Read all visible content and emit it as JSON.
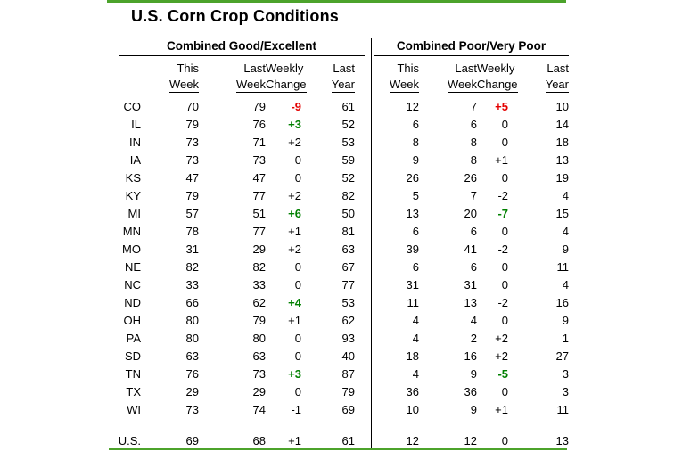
{
  "title": "U.S. Corn Crop Conditions",
  "chart_data": {
    "type": "table",
    "title": "U.S. Corn Crop Conditions",
    "sections": [
      "Combined Good/Excellent",
      "Combined Poor/Very Poor"
    ],
    "column_headers_line1": [
      "This",
      "Last",
      "Weekly",
      "Last"
    ],
    "column_headers_line2": [
      "Week",
      "Week",
      "Change",
      "Year"
    ],
    "colors": {
      "accent_bar": "#4CA32B",
      "worsen": "#E40000",
      "improve": "#008000",
      "text": "#000000"
    },
    "rows": [
      {
        "state": "CO",
        "ge": [
          "70",
          "79",
          "-9",
          "61"
        ],
        "ge_style": "worsen",
        "pv": [
          "12",
          "7",
          "+5",
          "10"
        ],
        "pv_style": "worsen"
      },
      {
        "state": "IL",
        "ge": [
          "79",
          "76",
          "+3",
          "52"
        ],
        "ge_style": "improve",
        "pv": [
          "6",
          "6",
          "0",
          "14"
        ],
        "pv_style": "none"
      },
      {
        "state": "IN",
        "ge": [
          "73",
          "71",
          "+2",
          "53"
        ],
        "ge_style": "none",
        "pv": [
          "8",
          "8",
          "0",
          "18"
        ],
        "pv_style": "none"
      },
      {
        "state": "IA",
        "ge": [
          "73",
          "73",
          "0",
          "59"
        ],
        "ge_style": "none",
        "pv": [
          "9",
          "8",
          "+1",
          "13"
        ],
        "pv_style": "none"
      },
      {
        "state": "KS",
        "ge": [
          "47",
          "47",
          "0",
          "52"
        ],
        "ge_style": "none",
        "pv": [
          "26",
          "26",
          "0",
          "19"
        ],
        "pv_style": "none"
      },
      {
        "state": "KY",
        "ge": [
          "79",
          "77",
          "+2",
          "82"
        ],
        "ge_style": "none",
        "pv": [
          "5",
          "7",
          "-2",
          "4"
        ],
        "pv_style": "none"
      },
      {
        "state": "MI",
        "ge": [
          "57",
          "51",
          "+6",
          "50"
        ],
        "ge_style": "improve",
        "pv": [
          "13",
          "20",
          "-7",
          "15"
        ],
        "pv_style": "improve"
      },
      {
        "state": "MN",
        "ge": [
          "78",
          "77",
          "+1",
          "81"
        ],
        "ge_style": "none",
        "pv": [
          "6",
          "6",
          "0",
          "4"
        ],
        "pv_style": "none"
      },
      {
        "state": "MO",
        "ge": [
          "31",
          "29",
          "+2",
          "63"
        ],
        "ge_style": "none",
        "pv": [
          "39",
          "41",
          "-2",
          "9"
        ],
        "pv_style": "none"
      },
      {
        "state": "NE",
        "ge": [
          "82",
          "82",
          "0",
          "67"
        ],
        "ge_style": "none",
        "pv": [
          "6",
          "6",
          "0",
          "11"
        ],
        "pv_style": "none"
      },
      {
        "state": "NC",
        "ge": [
          "33",
          "33",
          "0",
          "77"
        ],
        "ge_style": "none",
        "pv": [
          "31",
          "31",
          "0",
          "4"
        ],
        "pv_style": "none"
      },
      {
        "state": "ND",
        "ge": [
          "66",
          "62",
          "+4",
          "53"
        ],
        "ge_style": "improve",
        "pv": [
          "11",
          "13",
          "-2",
          "16"
        ],
        "pv_style": "none"
      },
      {
        "state": "OH",
        "ge": [
          "80",
          "79",
          "+1",
          "62"
        ],
        "ge_style": "none",
        "pv": [
          "4",
          "4",
          "0",
          "9"
        ],
        "pv_style": "none"
      },
      {
        "state": "PA",
        "ge": [
          "80",
          "80",
          "0",
          "93"
        ],
        "ge_style": "none",
        "pv": [
          "4",
          "2",
          "+2",
          "1"
        ],
        "pv_style": "none"
      },
      {
        "state": "SD",
        "ge": [
          "63",
          "63",
          "0",
          "40"
        ],
        "ge_style": "none",
        "pv": [
          "18",
          "16",
          "+2",
          "27"
        ],
        "pv_style": "none"
      },
      {
        "state": "TN",
        "ge": [
          "76",
          "73",
          "+3",
          "87"
        ],
        "ge_style": "improve",
        "pv": [
          "4",
          "9",
          "-5",
          "3"
        ],
        "pv_style": "improve"
      },
      {
        "state": "TX",
        "ge": [
          "29",
          "29",
          "0",
          "79"
        ],
        "ge_style": "none",
        "pv": [
          "36",
          "36",
          "0",
          "3"
        ],
        "pv_style": "none"
      },
      {
        "state": "WI",
        "ge": [
          "73",
          "74",
          "-1",
          "69"
        ],
        "ge_style": "none",
        "pv": [
          "10",
          "9",
          "+1",
          "11"
        ],
        "pv_style": "none"
      }
    ],
    "total_row": {
      "state": "U.S.",
      "ge": [
        "69",
        "68",
        "+1",
        "61"
      ],
      "ge_style": "none",
      "pv": [
        "12",
        "12",
        "0",
        "13"
      ],
      "pv_style": "none"
    }
  }
}
